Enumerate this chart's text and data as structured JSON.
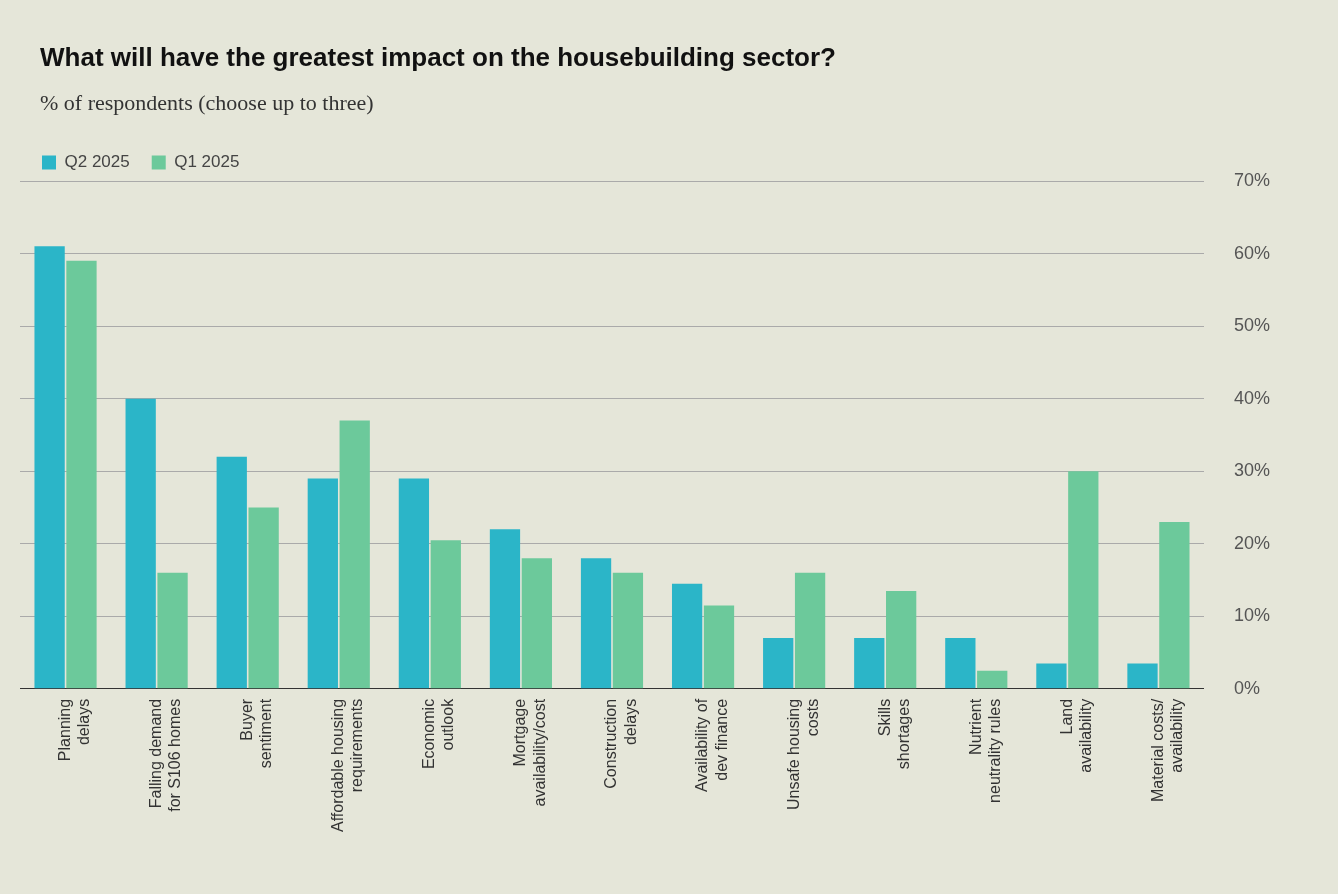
{
  "chart_data": {
    "type": "bar",
    "title": "What will have the greatest impact on the housebuilding sector?",
    "subtitle": "% of respondents (choose up to three)",
    "categories": [
      "Planning\ndelays",
      "Falling demand\nfor S106 homes",
      "Buyer\nsentiment",
      "Affordable housing\nrequirements",
      "Economic\noutlook",
      "Mortgage\navailability/cost",
      "Construction\ndelays",
      "Availability of\ndev finance",
      "Unsafe housing\ncosts",
      "Skills\nshortages",
      "Nutrient\nneutrality rules",
      "Land\navailability",
      "Material costs/\navailability"
    ],
    "series": [
      {
        "name": "Q2 2025",
        "color": "#2bb5c8",
        "values": [
          61,
          40,
          32,
          29,
          29,
          22,
          18,
          14.5,
          7,
          7,
          7,
          3.5,
          3.5
        ]
      },
      {
        "name": "Q1 2025",
        "color": "#6cc99b",
        "values": [
          59,
          16,
          25,
          37,
          20.5,
          18,
          16,
          11.5,
          16,
          13.5,
          2.5,
          30,
          23
        ]
      }
    ],
    "ylim": [
      0,
      70
    ],
    "yticks": [
      {
        "value": 0,
        "label": "0%"
      },
      {
        "value": 10,
        "label": "10%"
      },
      {
        "value": 20,
        "label": "20%"
      },
      {
        "value": 30,
        "label": "30%"
      },
      {
        "value": 40,
        "label": "40%"
      },
      {
        "value": 50,
        "label": "50%"
      },
      {
        "value": 60,
        "label": "60%"
      },
      {
        "value": 70,
        "label": "70%"
      }
    ],
    "grid": "y",
    "legend": "top left"
  }
}
